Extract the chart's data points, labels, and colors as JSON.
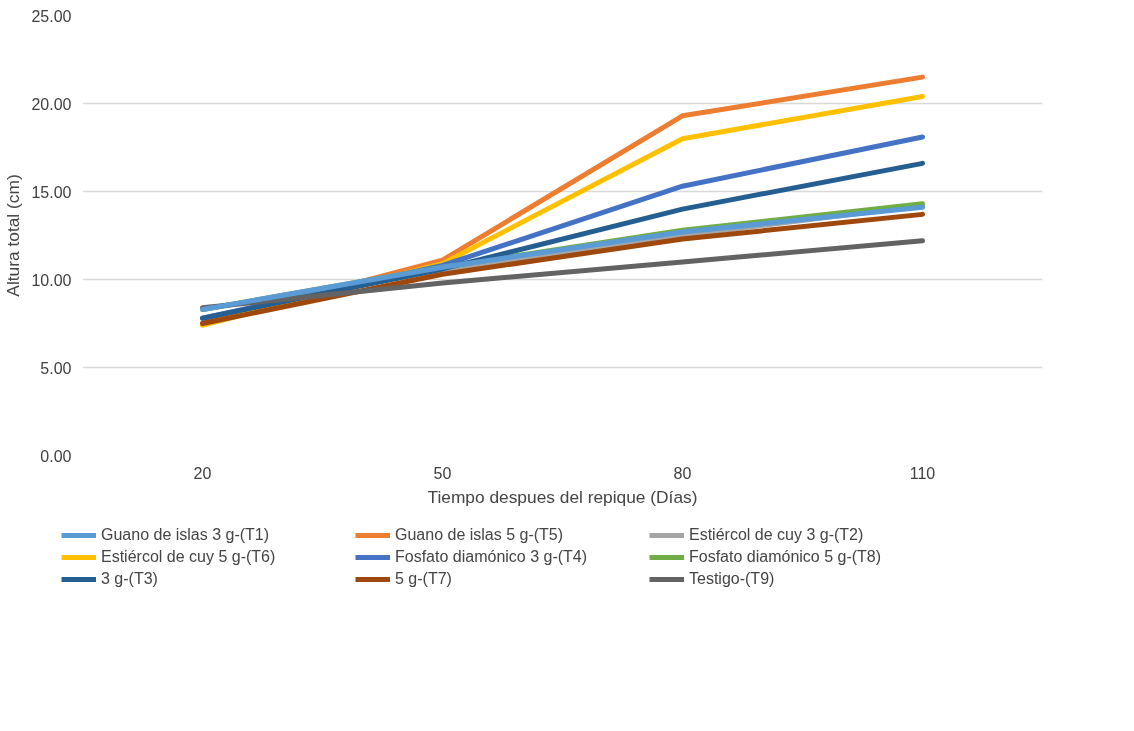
{
  "chart_data": {
    "type": "line",
    "xlabel": "Tiempo despues del repique (Días)",
    "ylabel": "Altura total (cm)",
    "categories": [
      "20",
      "50",
      "80",
      "110"
    ],
    "ylim": [
      0,
      25
    ],
    "yticks": [
      {
        "value": 0,
        "label": "0.00"
      },
      {
        "value": 5,
        "label": "5.00"
      },
      {
        "value": 10,
        "label": "10.00"
      },
      {
        "value": 15,
        "label": "15.00"
      },
      {
        "value": 20,
        "label": "20.00"
      },
      {
        "value": 25,
        "label": "25.00"
      }
    ],
    "grid": "y",
    "legend": "bottom",
    "marker": "none",
    "line_style": "solid",
    "series": [
      {
        "name": "Guano de islas 3 g-(T1)",
        "color": "#5b9bd5",
        "values": [
          8.3,
          10.7,
          12.7,
          14.1
        ]
      },
      {
        "name": "Guano de islas 5 g-(T5)",
        "color": "#ed7d31",
        "values": [
          7.5,
          11.1,
          19.3,
          21.5
        ]
      },
      {
        "name": "Estiércol de cuy 3 g-(T2)",
        "color": "#a5a5a5",
        "values": [
          8.3,
          10.5,
          12.5,
          14.2
        ]
      },
      {
        "name": "Estiércol de cuy 5 g-(T6)",
        "color": "#ffc000",
        "values": [
          7.4,
          10.9,
          18.0,
          20.4
        ]
      },
      {
        "name": "Fosfato diamónico 3 g-(T4)",
        "color": "#4472c4",
        "values": [
          7.8,
          10.8,
          15.3,
          18.1
        ]
      },
      {
        "name": "Fosfato diamónico 5 g-(T8)",
        "color": "#70ad47",
        "values": [
          8.3,
          10.7,
          12.8,
          14.3
        ]
      },
      {
        "name": "3 g-(T3)",
        "color": "#255e91",
        "values": [
          7.8,
          10.6,
          14.0,
          16.6
        ]
      },
      {
        "name": "5 g-(T7)",
        "color": "#9e480e",
        "values": [
          7.5,
          10.3,
          12.3,
          13.7
        ]
      },
      {
        "name": "Testigo-(T9)",
        "color": "#636363",
        "values": [
          8.4,
          9.8,
          11.0,
          12.2
        ]
      }
    ]
  }
}
